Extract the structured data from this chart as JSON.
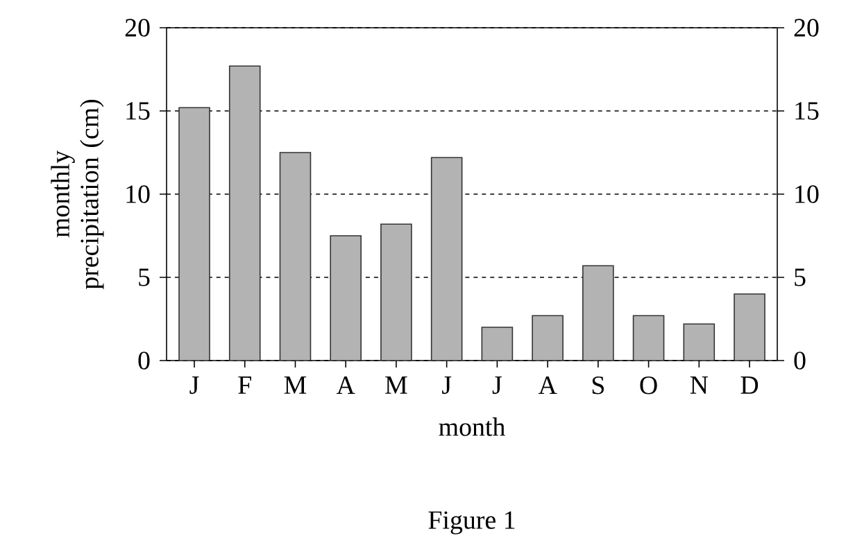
{
  "chart_data": {
    "type": "bar",
    "xlabel": "month",
    "ylabel": "monthly precipitation (cm)",
    "categories": [
      "J",
      "F",
      "M",
      "A",
      "M",
      "J",
      "J",
      "A",
      "S",
      "O",
      "N",
      "D"
    ],
    "values": [
      15.2,
      17.7,
      12.5,
      7.5,
      8.2,
      12.2,
      2.0,
      2.7,
      5.7,
      2.7,
      2.2,
      4.0
    ],
    "color": "#b3b3b3",
    "ylim": [
      0,
      20
    ],
    "yticks": [
      0,
      5,
      10,
      15,
      20
    ],
    "y2lim": [
      0,
      20
    ],
    "y2ticks": [
      0,
      5,
      10,
      15,
      20
    ],
    "grid": "y",
    "annotations": [
      "Figure 1"
    ]
  }
}
